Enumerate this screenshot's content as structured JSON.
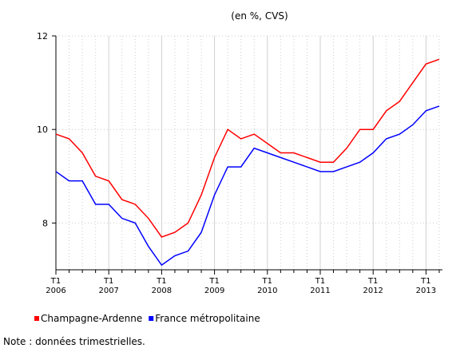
{
  "chart_data": {
    "type": "line",
    "subtitle": "(en %, CVS)",
    "categories": [
      "T1 2006",
      null,
      null,
      null,
      "T1 2007",
      null,
      null,
      null,
      "T1 2008",
      null,
      null,
      null,
      "T1 2009",
      null,
      null,
      null,
      "T1 2010",
      null,
      null,
      null,
      "T1 2011",
      null,
      null,
      null,
      "T1 2012",
      null,
      null,
      null,
      "T1 2013",
      null
    ],
    "series": [
      {
        "name": "Champagne-Ardenne",
        "color": "#ff0000",
        "values": [
          9.9,
          9.8,
          9.5,
          9.0,
          8.9,
          8.5,
          8.4,
          8.1,
          7.7,
          7.8,
          8.0,
          8.6,
          9.4,
          10.0,
          9.8,
          9.9,
          9.7,
          9.5,
          9.5,
          9.4,
          9.3,
          9.3,
          9.6,
          10.0,
          10.0,
          10.4,
          10.6,
          11.0,
          11.4,
          11.5
        ]
      },
      {
        "name": "France métropolitaine",
        "color": "#0000ff",
        "values": [
          9.1,
          8.9,
          8.9,
          8.4,
          8.4,
          8.1,
          8.0,
          7.5,
          7.1,
          7.3,
          7.4,
          7.8,
          8.6,
          9.2,
          9.2,
          9.6,
          9.5,
          9.4,
          9.3,
          9.2,
          9.1,
          9.1,
          9.2,
          9.3,
          9.5,
          9.8,
          9.9,
          10.1,
          10.4,
          10.5
        ]
      }
    ],
    "ylim": [
      7,
      12
    ],
    "yticks": [
      8,
      10,
      12
    ],
    "grid": true,
    "note": "Note : données trimestrielles."
  }
}
